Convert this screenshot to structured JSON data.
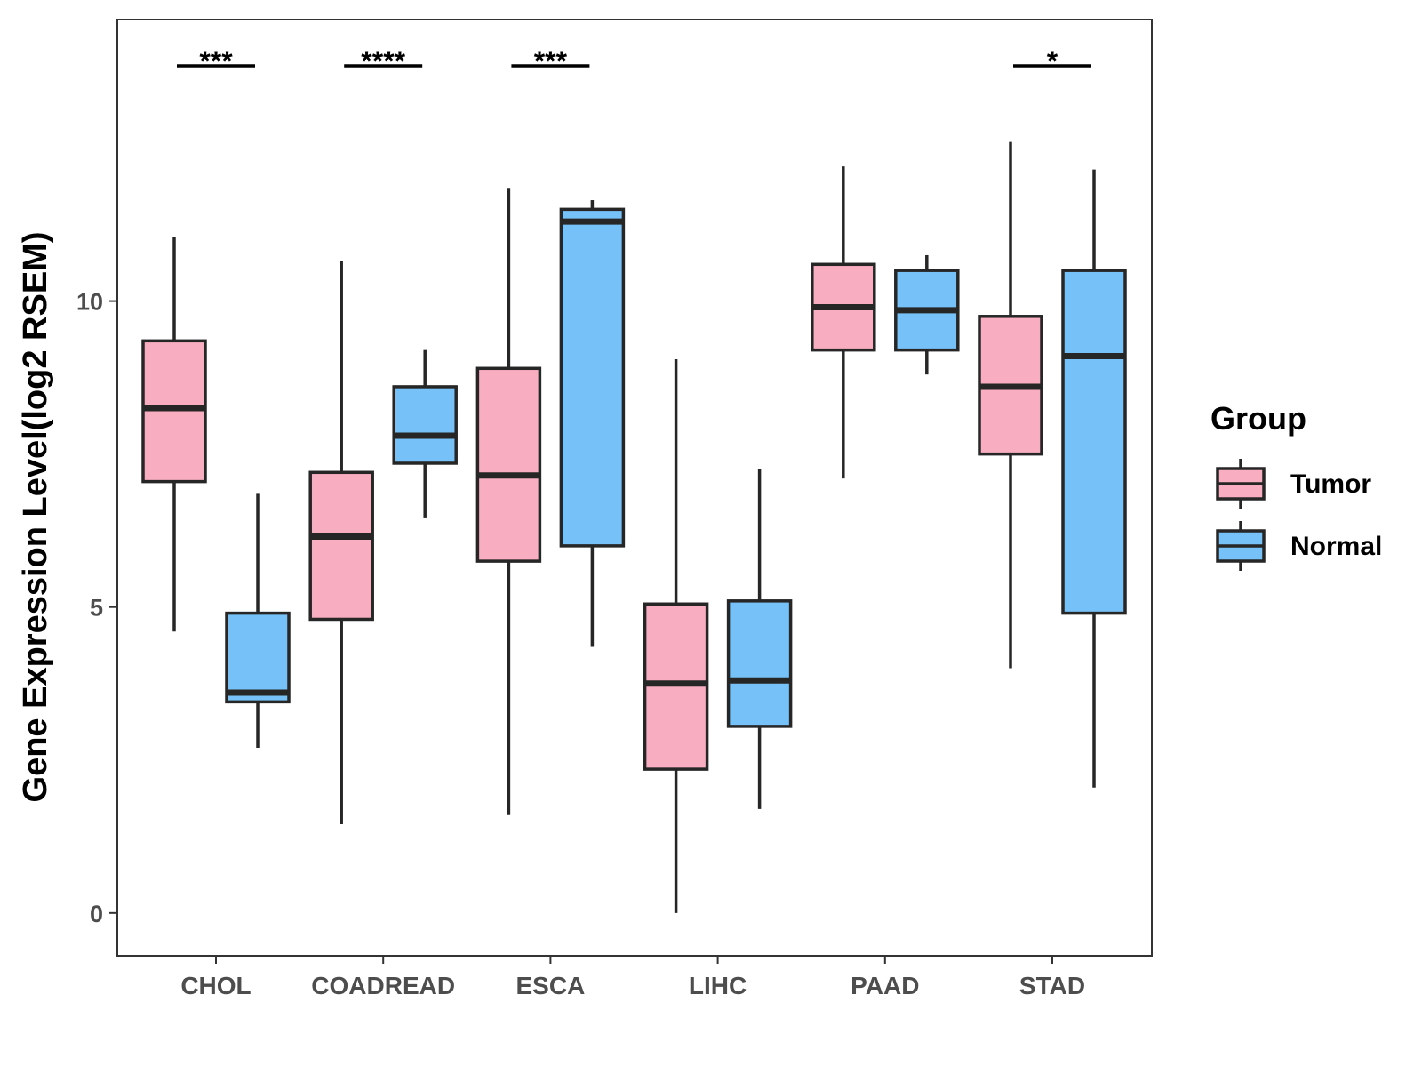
{
  "chart_data": {
    "type": "boxplot",
    "ylabel": "Gene Expression Level(log2 RSEM)",
    "xlabel": "",
    "ylim": [
      -0.7,
      14.6
    ],
    "yticks": [
      0,
      5,
      10
    ],
    "categories": [
      "CHOL",
      "COADREAD",
      "ESCA",
      "LIHC",
      "PAAD",
      "STAD"
    ],
    "legend": {
      "title": "Group",
      "placement": "right",
      "entries": [
        {
          "name": "Tumor",
          "color": "#F8AEC0"
        },
        {
          "name": "Normal",
          "color": "#76C1F7"
        }
      ]
    },
    "series": [
      {
        "name": "Tumor",
        "color": "#F8AEC0",
        "boxes": [
          {
            "min": 4.6,
            "q1": 7.05,
            "median": 8.25,
            "q3": 9.35,
            "max": 11.05
          },
          {
            "min": 1.45,
            "q1": 4.8,
            "median": 6.15,
            "q3": 7.2,
            "max": 10.65
          },
          {
            "min": 1.6,
            "q1": 5.75,
            "median": 7.15,
            "q3": 8.9,
            "max": 11.85
          },
          {
            "min": 0.0,
            "q1": 2.35,
            "median": 3.75,
            "q3": 5.05,
            "max": 9.05
          },
          {
            "min": 7.1,
            "q1": 9.2,
            "median": 9.9,
            "q3": 10.6,
            "max": 12.2
          },
          {
            "min": 4.0,
            "q1": 7.5,
            "median": 8.6,
            "q3": 9.75,
            "max": 12.6
          }
        ]
      },
      {
        "name": "Normal",
        "color": "#76C1F7",
        "boxes": [
          {
            "min": 2.7,
            "q1": 3.45,
            "median": 3.6,
            "q3": 4.9,
            "max": 6.85
          },
          {
            "min": 6.45,
            "q1": 7.35,
            "median": 7.8,
            "q3": 8.6,
            "max": 9.2
          },
          {
            "min": 4.35,
            "q1": 6.0,
            "median": 11.3,
            "q3": 11.5,
            "max": 11.65
          },
          {
            "min": 1.7,
            "q1": 3.05,
            "median": 3.8,
            "q3": 5.1,
            "max": 7.25
          },
          {
            "min": 8.8,
            "q1": 9.2,
            "median": 9.85,
            "q3": 10.5,
            "max": 10.75
          },
          {
            "min": 2.05,
            "q1": 4.9,
            "median": 9.1,
            "q3": 10.5,
            "max": 12.15
          }
        ]
      }
    ],
    "significance": [
      {
        "category": "CHOL",
        "label": "***"
      },
      {
        "category": "COADREAD",
        "label": "****"
      },
      {
        "category": "ESCA",
        "label": "***"
      },
      {
        "category": "STAD",
        "label": "*"
      }
    ],
    "grid": false
  }
}
